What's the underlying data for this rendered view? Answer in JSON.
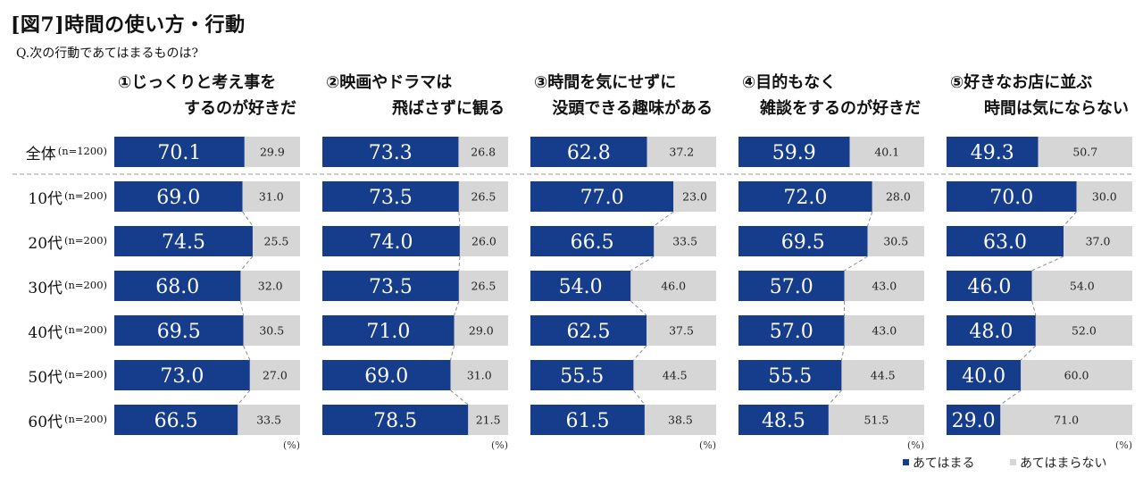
{
  "figure": {
    "title": "[図7]時間の使い方・行動",
    "question": "Q.次の行動であてはまるものは?"
  },
  "chart_data": {
    "type": "bar",
    "stacked": true,
    "orientation": "horizontal",
    "unit": "(%)",
    "colors": {
      "yes": "#163c8c",
      "no": "#d6d6d6"
    },
    "legend": [
      "あてはまる",
      "あてはまらない"
    ],
    "legend_position": "bottom-right",
    "categories": [
      {
        "main": "全体",
        "n": "(n=1200)"
      },
      {
        "main": "10代",
        "n": "(n=200)"
      },
      {
        "main": "20代",
        "n": "(n=200)"
      },
      {
        "main": "30代",
        "n": "(n=200)"
      },
      {
        "main": "40代",
        "n": "(n=200)"
      },
      {
        "main": "50代",
        "n": "(n=200)"
      },
      {
        "main": "60代",
        "n": "(n=200)"
      }
    ],
    "panels": [
      {
        "title": [
          "①じっくりと考え事を",
          "するのが好きだ"
        ],
        "yes": [
          70.1,
          69.0,
          74.5,
          68.0,
          69.5,
          73.0,
          66.5
        ],
        "no": [
          29.9,
          31.0,
          25.5,
          32.0,
          30.5,
          27.0,
          33.5
        ]
      },
      {
        "title": [
          "②映画やドラマは",
          "飛ばさずに観る"
        ],
        "yes": [
          73.3,
          73.5,
          74.0,
          73.5,
          71.0,
          69.0,
          78.5
        ],
        "no": [
          26.8,
          26.5,
          26.0,
          26.5,
          29.0,
          31.0,
          21.5
        ]
      },
      {
        "title": [
          "③時間を気にせずに",
          "没頭できる趣味がある"
        ],
        "yes": [
          62.8,
          77.0,
          66.5,
          54.0,
          62.5,
          55.5,
          61.5
        ],
        "no": [
          37.2,
          23.0,
          33.5,
          46.0,
          37.5,
          44.5,
          38.5
        ]
      },
      {
        "title": [
          "④目的もなく",
          "雑談をするのが好きだ"
        ],
        "yes": [
          59.9,
          72.0,
          69.5,
          57.0,
          57.0,
          55.5,
          48.5
        ],
        "no": [
          40.1,
          28.0,
          30.5,
          43.0,
          43.0,
          44.5,
          51.5
        ]
      },
      {
        "title": [
          "⑤好きなお店に並ぶ",
          "時間は気にならない"
        ],
        "yes": [
          49.3,
          70.0,
          63.0,
          46.0,
          48.0,
          40.0,
          29.0
        ],
        "no": [
          50.7,
          30.0,
          37.0,
          54.0,
          52.0,
          60.0,
          71.0
        ]
      }
    ]
  }
}
